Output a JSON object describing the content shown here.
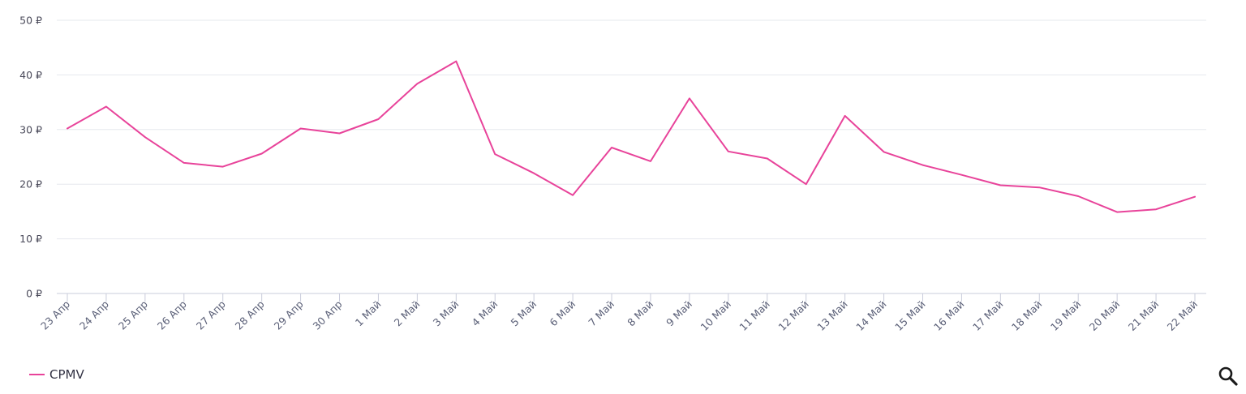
{
  "chart_data": {
    "type": "line",
    "categories": [
      "23 Апр",
      "24 Апр",
      "25 Апр",
      "26 Апр",
      "27 Апр",
      "28 Апр",
      "29 Апр",
      "30 Апр",
      "1 Май",
      "2 Май",
      "3 Май",
      "4 Май",
      "5 Май",
      "6 Май",
      "7 Май",
      "8 Май",
      "9 Май",
      "10 Май",
      "11 Май",
      "12 Май",
      "13 Май",
      "14 Май",
      "15 Май",
      "16 Май",
      "17 Май",
      "18 Май",
      "19 Май",
      "20 Май",
      "21 Май",
      "22 Май"
    ],
    "series": [
      {
        "name": "CPMV",
        "color": "#e8439a",
        "values": [
          30.2,
          34.2,
          28.6,
          23.9,
          23.2,
          25.6,
          30.2,
          29.3,
          31.9,
          38.4,
          42.5,
          25.5,
          22.0,
          18.0,
          26.7,
          24.2,
          35.7,
          26.0,
          24.7,
          20.0,
          32.5,
          25.9,
          23.5,
          21.7,
          19.8,
          19.4,
          17.8,
          14.9,
          15.4,
          17.7
        ]
      }
    ],
    "yticks": [
      "0 ₽",
      "10 ₽",
      "20 ₽",
      "30 ₽",
      "40 ₽",
      "50 ₽"
    ],
    "ylim": [
      0,
      50
    ],
    "grid": true,
    "legend_position": "bottom-left"
  },
  "legend": {
    "label": "CPMV",
    "color": "#e8439a"
  },
  "controls": {
    "zoom_icon": "magnifier-icon"
  }
}
